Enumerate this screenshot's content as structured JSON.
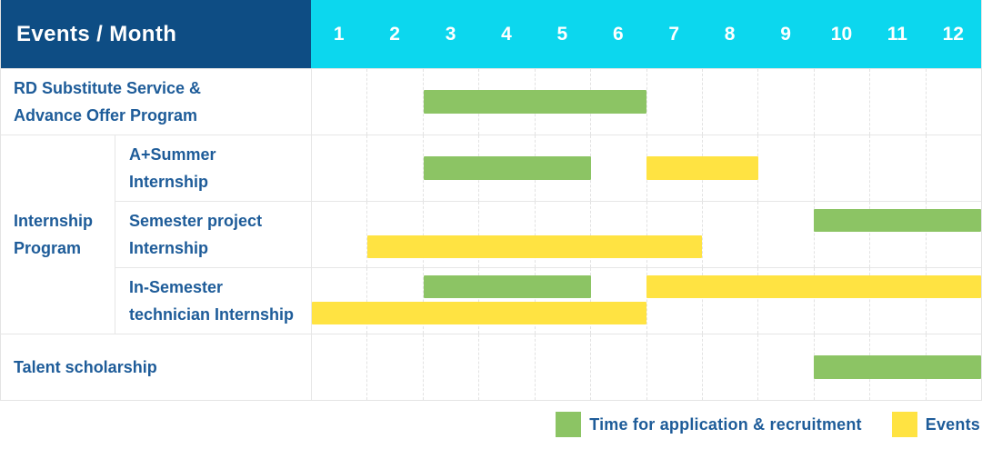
{
  "header": {
    "title": "Events / Month",
    "months": [
      "1",
      "2",
      "3",
      "4",
      "5",
      "6",
      "7",
      "8",
      "9",
      "10",
      "11",
      "12"
    ]
  },
  "colors": {
    "header_bg": "#0e4d84",
    "month_header_bg": "#0cd7ee",
    "header_text": "#ffffff",
    "label_text": "#1e5c99",
    "application_green": "#8cc464",
    "events_yellow": "#ffe342",
    "grid_line": "#e2e2e2"
  },
  "chart_data": {
    "type": "gantt",
    "x_axis": {
      "unit": "month",
      "ticks": [
        "1",
        "2",
        "3",
        "4",
        "5",
        "6",
        "7",
        "8",
        "9",
        "10",
        "11",
        "12"
      ],
      "range": [
        1,
        12
      ]
    },
    "legend_position": "bottom-right",
    "grid": "dashed-vertical-month-lines",
    "series": [
      {
        "id": "application",
        "name": "Time for application & recruitment",
        "color": "#8cc464"
      },
      {
        "id": "events",
        "name": "Events",
        "color": "#ffe342"
      }
    ],
    "groups": [
      {
        "label": "Internship Program",
        "label_lines": [
          "Internship",
          "Program"
        ],
        "start_row": 1,
        "row_count": 3
      }
    ],
    "rows": [
      {
        "label": "RD Substitute Service & Advance Offer Program",
        "label_lines": [
          "RD Substitute Service &",
          "Advance Offer Program"
        ],
        "group_index": null,
        "lines": 1,
        "bars": [
          {
            "series": "application",
            "start_month": 3,
            "end_month": 6,
            "line": 0
          }
        ]
      },
      {
        "label": "A+Summer Internship",
        "label_lines": [
          "A+Summer",
          "Internship"
        ],
        "group_index": 0,
        "lines": 1,
        "bars": [
          {
            "series": "application",
            "start_month": 3,
            "end_month": 5,
            "line": 0
          },
          {
            "series": "events",
            "start_month": 7,
            "end_month": 8,
            "line": 0
          }
        ]
      },
      {
        "label": "Semester project Internship",
        "label_lines": [
          "Semester project",
          "Internship"
        ],
        "group_index": 0,
        "lines": 2,
        "bars": [
          {
            "series": "application",
            "start_month": 10,
            "end_month": 12,
            "line": 0
          },
          {
            "series": "events",
            "start_month": 2,
            "end_month": 7,
            "line": 1
          }
        ]
      },
      {
        "label": "In-Semester technician Internship",
        "label_lines": [
          "In-Semester",
          "technician Internship"
        ],
        "group_index": 0,
        "lines": 2,
        "bars": [
          {
            "series": "application",
            "start_month": 3,
            "end_month": 5,
            "line": 0
          },
          {
            "series": "events",
            "start_month": 7,
            "end_month": 12,
            "line": 0
          },
          {
            "series": "events",
            "start_month": 1,
            "end_month": 6,
            "line": 1
          }
        ]
      },
      {
        "label": "Talent scholarship",
        "label_lines": [
          "Talent scholarship"
        ],
        "group_index": null,
        "lines": 1,
        "bars": [
          {
            "series": "application",
            "start_month": 10,
            "end_month": 12,
            "line": 0
          }
        ]
      }
    ]
  }
}
